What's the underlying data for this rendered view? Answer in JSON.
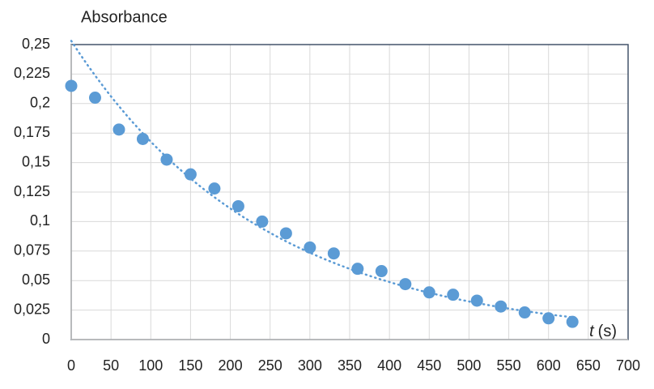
{
  "chart_data": {
    "type": "scatter",
    "y_label": "Absorbance",
    "x_label": {
      "symbol": "t",
      "unit": "(s)"
    },
    "x": [
      0,
      30,
      60,
      90,
      120,
      150,
      180,
      210,
      240,
      270,
      300,
      330,
      360,
      390,
      420,
      450,
      480,
      510,
      540,
      570,
      600,
      630
    ],
    "values": [
      0.215,
      0.205,
      0.178,
      0.17,
      0.1525,
      0.14,
      0.128,
      0.113,
      0.1,
      0.09,
      0.078,
      0.073,
      0.06,
      0.058,
      0.047,
      0.04,
      0.038,
      0.033,
      0.028,
      0.023,
      0.018,
      0.015
    ],
    "color": "#5b9bd5",
    "trendline": "exponential",
    "xlim": [
      0,
      700
    ],
    "xticks": [
      0,
      50,
      100,
      150,
      200,
      250,
      300,
      350,
      400,
      450,
      500,
      550,
      600,
      650,
      700
    ],
    "ylim": [
      0,
      0.25
    ],
    "yticks": [
      0,
      {
        "value": 0.025,
        "label": "0,025"
      },
      {
        "value": 0.05,
        "label": "0,05"
      },
      {
        "value": 0.075,
        "label": "0,075"
      },
      {
        "value": 0.1,
        "label": "0,1"
      },
      {
        "value": 0.125,
        "label": "0,125"
      },
      {
        "value": 0.15,
        "label": "0,15"
      },
      {
        "value": 0.175,
        "label": "0,175"
      },
      {
        "value": 0.2,
        "label": "0,2"
      },
      {
        "value": 0.225,
        "label": "0,225"
      },
      {
        "value": 0.25,
        "label": "0,25"
      }
    ],
    "grid": true
  }
}
